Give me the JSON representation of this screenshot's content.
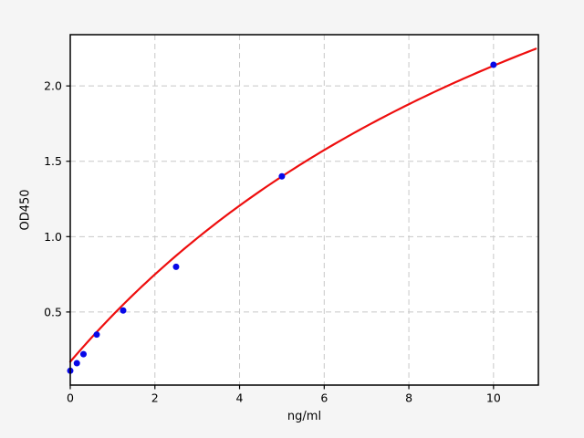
{
  "figure": {
    "background": "#f5f5f5",
    "plot_background": "#ffffff",
    "spine_color": "#000000"
  },
  "chart_data": {
    "type": "scatter",
    "title": "",
    "xlabel": "ng/ml",
    "ylabel": "OD450",
    "xlim": [
      0,
      11.06
    ],
    "ylim": [
      0.015,
      2.34
    ],
    "x_ticks": [
      0,
      2,
      4,
      6,
      8,
      10
    ],
    "y_ticks": [
      0.5,
      1.0,
      1.5,
      2.0
    ],
    "grid": {
      "visible": true,
      "style": "dashed",
      "color": "#c8c8c8"
    },
    "legend": null,
    "series": [
      {
        "name": "standard-points",
        "type": "scatter",
        "color": "#0808e8",
        "marker": "circle",
        "x": [
          0,
          0.156,
          0.312,
          0.625,
          1.25,
          2.5,
          5,
          10
        ],
        "y": [
          0.11,
          0.16,
          0.22,
          0.35,
          0.51,
          0.8,
          1.4,
          2.14
        ]
      },
      {
        "name": "fit-curve",
        "type": "line",
        "color": "#ee0e0e",
        "fit_model": "saturation",
        "fit_params": {
          "y0": 0.17,
          "vmax": 4.88,
          "km": 14.85
        },
        "x_start": 0,
        "x_end": 11.06
      }
    ]
  }
}
